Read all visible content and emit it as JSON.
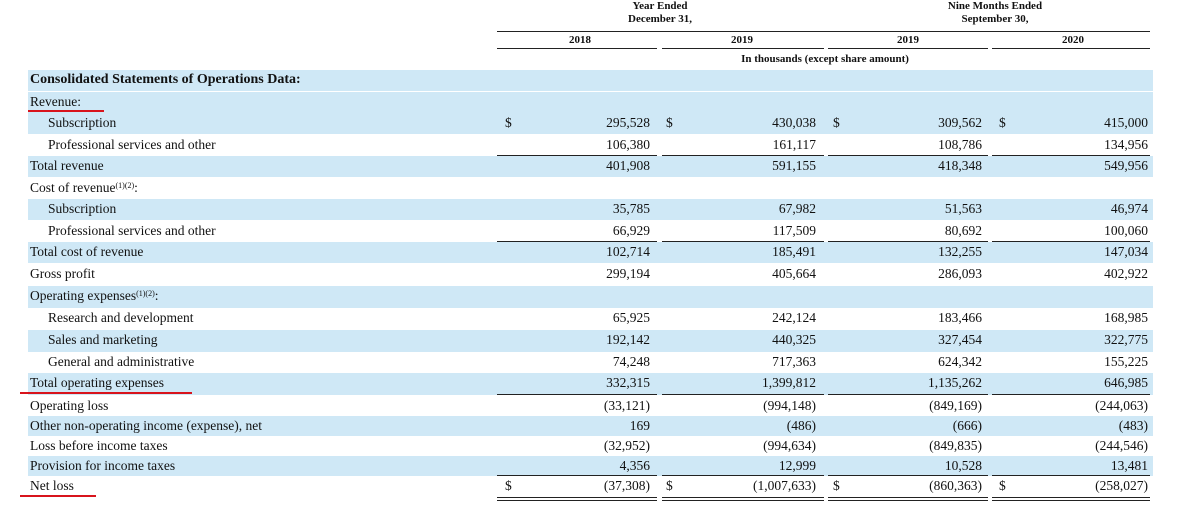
{
  "header": {
    "period1_line1": "Year Ended",
    "period1_line2": "December 31,",
    "period2_line1": "Nine Months Ended",
    "period2_line2": "September 30,",
    "years": [
      "2018",
      "2019",
      "2019",
      "2020"
    ],
    "units": "In thousands (except share amount)"
  },
  "currency_symbol": "$",
  "section_title": "Consolidated Statements of Operations Data:",
  "footnote_marks": "(1)(2)",
  "rows": [
    {
      "label": "Revenue:",
      "values": [
        "",
        "",
        "",
        ""
      ]
    },
    {
      "label": "Subscription",
      "values": [
        "295,528",
        "430,038",
        "309,562",
        "415,000"
      ]
    },
    {
      "label": "Professional services and other",
      "values": [
        "106,380",
        "161,117",
        "108,786",
        "134,956"
      ]
    },
    {
      "label": "Total revenue",
      "values": [
        "401,908",
        "591,155",
        "418,348",
        "549,956"
      ]
    },
    {
      "label": "Cost of revenue",
      "values": [
        "",
        "",
        "",
        ""
      ]
    },
    {
      "label": "Subscription",
      "values": [
        "35,785",
        "67,982",
        "51,563",
        "46,974"
      ]
    },
    {
      "label": "Professional services and other",
      "values": [
        "66,929",
        "117,509",
        "80,692",
        "100,060"
      ]
    },
    {
      "label": "Total cost of revenue",
      "values": [
        "102,714",
        "185,491",
        "132,255",
        "147,034"
      ]
    },
    {
      "label": "Gross profit",
      "values": [
        "299,194",
        "405,664",
        "286,093",
        "402,922"
      ]
    },
    {
      "label": "Operating expenses",
      "values": [
        "",
        "",
        "",
        ""
      ]
    },
    {
      "label": "Research and development",
      "values": [
        "65,925",
        "242,124",
        "183,466",
        "168,985"
      ]
    },
    {
      "label": "Sales and marketing",
      "values": [
        "192,142",
        "440,325",
        "327,454",
        "322,775"
      ]
    },
    {
      "label": "General and administrative",
      "values": [
        "74,248",
        "717,363",
        "624,342",
        "155,225"
      ]
    },
    {
      "label": "Total operating expenses",
      "values": [
        "332,315",
        "1,399,812",
        "1,135,262",
        "646,985"
      ]
    },
    {
      "label": "Operating loss",
      "values": [
        "(33,121)",
        "(994,148)",
        "(849,169)",
        "(244,063)"
      ]
    },
    {
      "label": "Other non-operating income (expense), net",
      "values": [
        "169",
        "(486)",
        "(666)",
        "(483)"
      ]
    },
    {
      "label": "Loss before income taxes",
      "values": [
        "(32,952)",
        "(994,634)",
        "(849,835)",
        "(244,546)"
      ]
    },
    {
      "label": "Provision for income taxes",
      "values": [
        "4,356",
        "12,999",
        "10,528",
        "13,481"
      ]
    },
    {
      "label": "Net loss",
      "values": [
        "(37,308)",
        "(1,007,633)",
        "(860,363)",
        "(258,027)"
      ]
    }
  ]
}
